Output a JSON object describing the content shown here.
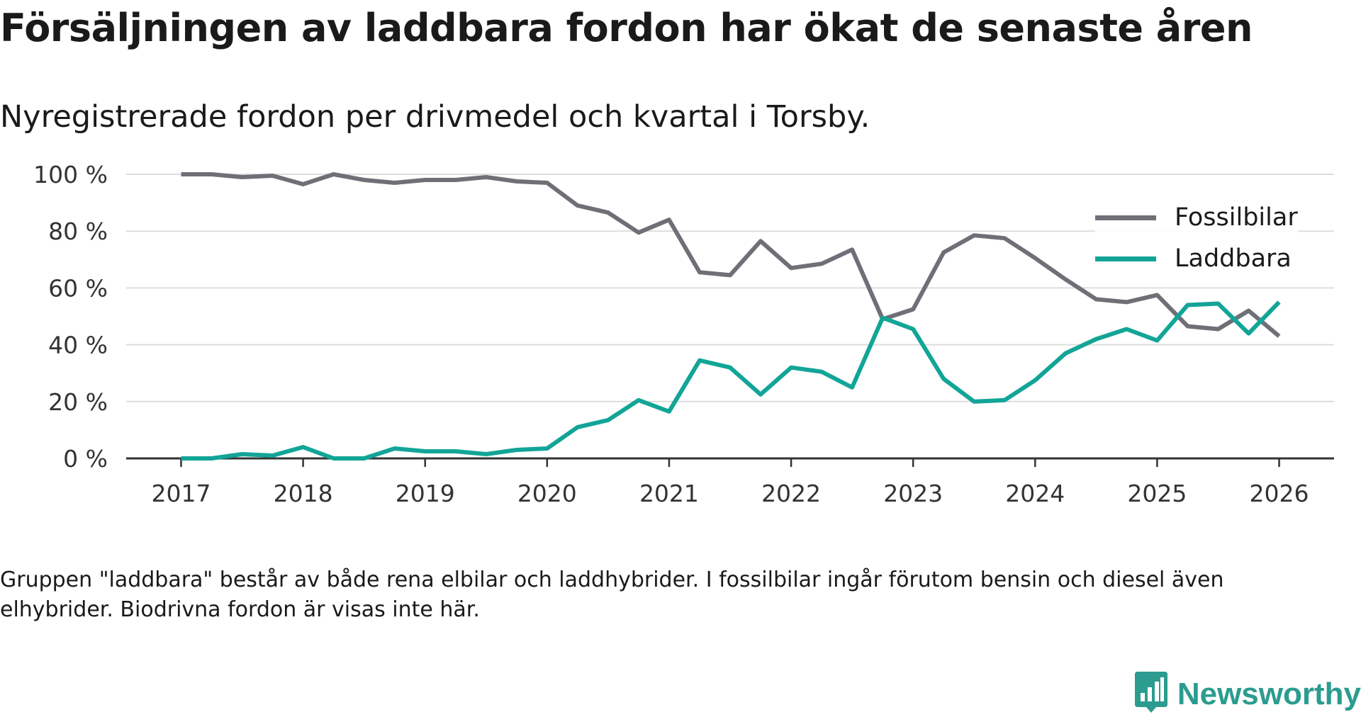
{
  "title": "Försäljningen av laddbara fordon har ökat de senaste åren",
  "subtitle": "Nyregistrerade fordon per drivmedel och kvartal i Torsby.",
  "note": "Gruppen \"laddbara\" består av både rena elbilar och laddhybrider. I fossilbilar ingår förutom bensin och diesel även elhybrider. Biodrivna fordon är visas inte här.",
  "brand": {
    "name": "Newsworthy",
    "icon": "newsworthy-logo-icon"
  },
  "colors": {
    "fossil": "#6f6f77",
    "laddbara": "#12a597",
    "grid": "#dddddd",
    "axis": "#333333"
  },
  "chart_data": {
    "type": "line",
    "title": "Försäljningen av laddbara fordon har ökat de senaste åren",
    "xlabel": "",
    "ylabel": "",
    "ylim": [
      0,
      100
    ],
    "xlim": [
      2016.55,
      2026.45
    ],
    "y_ticks": [
      0,
      20,
      40,
      60,
      80,
      100
    ],
    "y_tick_labels": [
      "0 %",
      "20 %",
      "40 %",
      "60 %",
      "80 %",
      "100 %"
    ],
    "x_ticks": [
      2017,
      2018,
      2019,
      2020,
      2021,
      2022,
      2023,
      2024,
      2025,
      2026
    ],
    "x_tick_labels": [
      "2017",
      "2018",
      "2019",
      "2020",
      "2021",
      "2022",
      "2023",
      "2024",
      "2025",
      "2026"
    ],
    "legend_position": "top-right",
    "grid": true,
    "x": [
      2017.0,
      2017.25,
      2017.5,
      2017.75,
      2018.0,
      2018.25,
      2018.5,
      2018.75,
      2019.0,
      2019.25,
      2019.5,
      2019.75,
      2020.0,
      2020.25,
      2020.5,
      2020.75,
      2021.0,
      2021.25,
      2021.5,
      2021.75,
      2022.0,
      2022.25,
      2022.5,
      2022.75,
      2023.0,
      2023.25,
      2023.5,
      2023.75,
      2024.0,
      2024.25,
      2024.5,
      2024.75,
      2025.0,
      2025.25,
      2025.5,
      2025.75,
      2026.0
    ],
    "series": [
      {
        "name": "Fossilbilar",
        "color": "#6f6f77",
        "values": [
          100,
          100,
          99,
          99.5,
          96.5,
          100,
          98,
          97,
          98,
          98,
          99,
          97.5,
          97,
          89,
          86.5,
          79.5,
          84,
          65.5,
          64.5,
          76.5,
          67,
          68.5,
          73.5,
          49,
          52.5,
          72.5,
          78.5,
          77.5,
          70.5,
          63,
          56,
          55,
          57.5,
          46.5,
          45.5,
          52,
          43
        ]
      },
      {
        "name": "Laddbara",
        "color": "#12a597",
        "values": [
          0,
          0,
          1.5,
          1,
          4,
          0,
          0,
          3.5,
          2.5,
          2.5,
          1.5,
          3,
          3.5,
          11,
          13.5,
          20.5,
          16.5,
          34.5,
          32,
          22.5,
          32,
          30.5,
          25,
          49.5,
          45.5,
          28,
          20,
          20.5,
          27.5,
          37,
          42,
          45.5,
          41.5,
          54,
          54.5,
          44,
          55
        ]
      }
    ]
  }
}
